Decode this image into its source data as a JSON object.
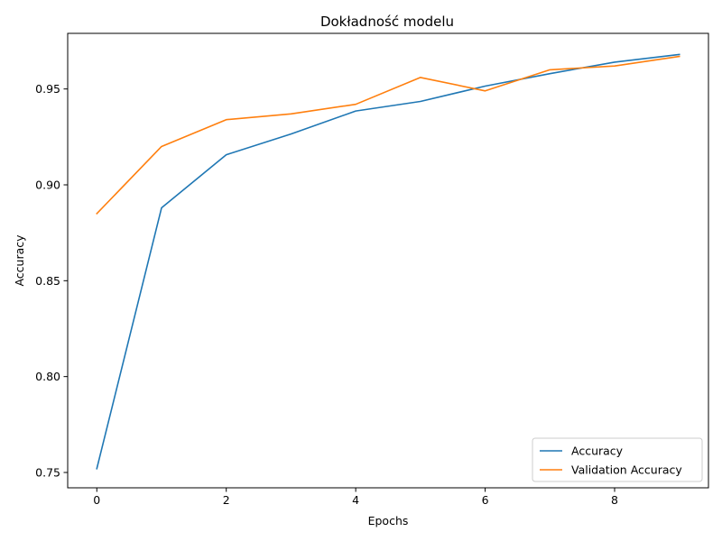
{
  "chart_data": {
    "type": "line",
    "title": "Dokładność modelu",
    "xlabel": "Epochs",
    "ylabel": "Accuracy",
    "x": [
      0,
      1,
      2,
      3,
      4,
      5,
      6,
      7,
      8,
      9
    ],
    "xlim": [
      -0.45,
      9.45
    ],
    "ylim": [
      0.742,
      0.979
    ],
    "xticks": [
      0,
      2,
      4,
      6,
      8
    ],
    "xtick_labels": [
      "0",
      "2",
      "4",
      "6",
      "8"
    ],
    "yticks": [
      0.75,
      0.8,
      0.85,
      0.9,
      0.95
    ],
    "ytick_labels": [
      "0.75",
      "0.80",
      "0.85",
      "0.90",
      "0.95"
    ],
    "grid": false,
    "legend_position": "lower-right",
    "series": [
      {
        "name": "Accuracy",
        "color": "#1f77b4",
        "values": [
          0.752,
          0.888,
          0.9157,
          0.9265,
          0.9385,
          0.9435,
          0.9515,
          0.958,
          0.964,
          0.968
        ]
      },
      {
        "name": "Validation Accuracy",
        "color": "#ff7f0e",
        "values": [
          0.885,
          0.92,
          0.934,
          0.937,
          0.942,
          0.956,
          0.949,
          0.96,
          0.962,
          0.967
        ]
      }
    ]
  }
}
